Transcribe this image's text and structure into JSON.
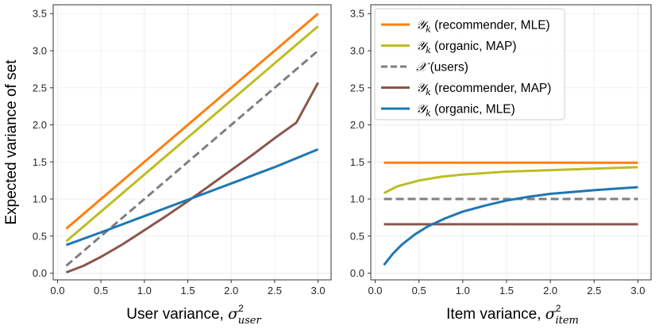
{
  "chart_data": [
    {
      "type": "line",
      "xlabel": "User variance, σ²user",
      "xlabel_text": "User variance, ",
      "xlabel_symbol": "σ",
      "xlabel_sup": "2",
      "xlabel_sub": "user",
      "ylabel": "Expected variance of set",
      "xlim": [
        -0.05,
        3.15
      ],
      "ylim": [
        -0.09,
        3.62
      ],
      "xticks": [
        0.0,
        0.5,
        1.0,
        1.5,
        2.0,
        2.5,
        3.0
      ],
      "xtick_labels": [
        "0.0",
        "0.5",
        "1.0",
        "1.5",
        "2.0",
        "2.5",
        "3.0"
      ],
      "yticks": [
        0.0,
        0.5,
        1.0,
        1.5,
        2.0,
        2.5,
        3.0,
        3.5
      ],
      "ytick_labels": [
        "0.0",
        "0.5",
        "1.0",
        "1.5",
        "2.0",
        "2.5",
        "3.0",
        "3.5"
      ],
      "grid": true,
      "series": [
        {
          "name": "Yk (recommender, MLE)",
          "color": "#ff7f0e",
          "dash": false,
          "x": [
            0.1,
            0.5,
            1.0,
            1.5,
            2.0,
            2.5,
            3.0
          ],
          "values": [
            0.6,
            1.0,
            1.5,
            2.0,
            2.5,
            3.0,
            3.5
          ]
        },
        {
          "name": "Yk (organic, MAP)",
          "color": "#bcbd22",
          "dash": false,
          "x": [
            0.1,
            0.5,
            1.0,
            1.5,
            2.0,
            2.5,
            3.0
          ],
          "values": [
            0.43,
            0.83,
            1.33,
            1.83,
            2.33,
            2.83,
            3.33
          ]
        },
        {
          "name": "X (users)",
          "color": "#7f7f7f",
          "dash": true,
          "x": [
            0.1,
            0.5,
            1.0,
            1.5,
            2.0,
            2.5,
            3.0
          ],
          "values": [
            0.1,
            0.5,
            1.0,
            1.5,
            2.0,
            2.5,
            3.0
          ]
        },
        {
          "name": "Yk (recommender, MAP)",
          "color": "#8c564b",
          "dash": false,
          "x": [
            0.1,
            0.3,
            0.5,
            0.75,
            1.0,
            1.25,
            1.5,
            1.75,
            2.0,
            2.25,
            2.5,
            2.75,
            3.0
          ],
          "values": [
            0.01,
            0.1,
            0.22,
            0.39,
            0.58,
            0.77,
            0.97,
            1.18,
            1.39,
            1.6,
            1.82,
            2.03,
            2.57
          ]
        },
        {
          "name": "Yk (organic, MLE)",
          "color": "#1f77b4",
          "dash": false,
          "x": [
            0.1,
            0.5,
            1.0,
            1.5,
            2.0,
            2.5,
            3.0
          ],
          "values": [
            0.38,
            0.55,
            0.77,
            0.99,
            1.21,
            1.43,
            1.67
          ]
        }
      ]
    },
    {
      "type": "line",
      "xlabel": "Item variance, σ²item",
      "xlabel_text": "Item variance, ",
      "xlabel_symbol": "σ",
      "xlabel_sup": "2",
      "xlabel_sub": "item",
      "xlim": [
        -0.05,
        3.15
      ],
      "ylim": [
        -0.09,
        3.62
      ],
      "xticks": [
        0.0,
        0.5,
        1.0,
        1.5,
        2.0,
        2.5,
        3.0
      ],
      "xtick_labels": [
        "0.0",
        "0.5",
        "1.0",
        "1.5",
        "2.0",
        "2.5",
        "3.0"
      ],
      "yticks": [
        0.0,
        0.5,
        1.0,
        1.5,
        2.0,
        2.5,
        3.0,
        3.5
      ],
      "ytick_labels": [
        "0.0",
        "0.5",
        "1.0",
        "1.5",
        "2.0",
        "2.5",
        "3.0",
        "3.5"
      ],
      "grid": true,
      "legend": "top-left",
      "series": [
        {
          "name": "Yk (recommender, MLE)",
          "color": "#ff7f0e",
          "dash": false,
          "x": [
            0.1,
            3.0
          ],
          "values": [
            1.49,
            1.49
          ]
        },
        {
          "name": "Yk (organic, MAP)",
          "color": "#bcbd22",
          "dash": false,
          "x": [
            0.1,
            0.25,
            0.5,
            0.75,
            1.0,
            1.5,
            2.0,
            2.5,
            3.0
          ],
          "values": [
            1.08,
            1.17,
            1.25,
            1.3,
            1.33,
            1.37,
            1.39,
            1.41,
            1.43
          ]
        },
        {
          "name": "X (users)",
          "color": "#7f7f7f",
          "dash": true,
          "x": [
            0.1,
            3.0
          ],
          "values": [
            1.0,
            1.0
          ]
        },
        {
          "name": "Yk (recommender, MAP)",
          "color": "#8c564b",
          "dash": false,
          "x": [
            0.1,
            3.0
          ],
          "values": [
            0.66,
            0.66
          ]
        },
        {
          "name": "Yk (organic, MLE)",
          "color": "#1f77b4",
          "dash": false,
          "x": [
            0.1,
            0.2,
            0.3,
            0.45,
            0.6,
            0.8,
            1.0,
            1.25,
            1.5,
            1.75,
            2.0,
            2.5,
            3.0
          ],
          "values": [
            0.11,
            0.26,
            0.38,
            0.52,
            0.63,
            0.74,
            0.83,
            0.91,
            0.98,
            1.03,
            1.07,
            1.12,
            1.16
          ]
        }
      ]
    }
  ],
  "legend": [
    {
      "letter": "𝒴",
      "sub": "k",
      "label": " (recommender, MLE)",
      "color": "#ff7f0e",
      "dash": false
    },
    {
      "letter": "𝒴",
      "sub": "k",
      "label": " (organic, MAP)",
      "color": "#bcbd22",
      "dash": false
    },
    {
      "letter": "𝒳",
      "sub": "",
      "label": " (users)",
      "color": "#7f7f7f",
      "dash": true
    },
    {
      "letter": "𝒴",
      "sub": "k",
      "label": " (recommender, MAP)",
      "color": "#8c564b",
      "dash": false
    },
    {
      "letter": "𝒴",
      "sub": "k",
      "label": " (organic, MLE)",
      "color": "#1f77b4",
      "dash": false
    }
  ]
}
